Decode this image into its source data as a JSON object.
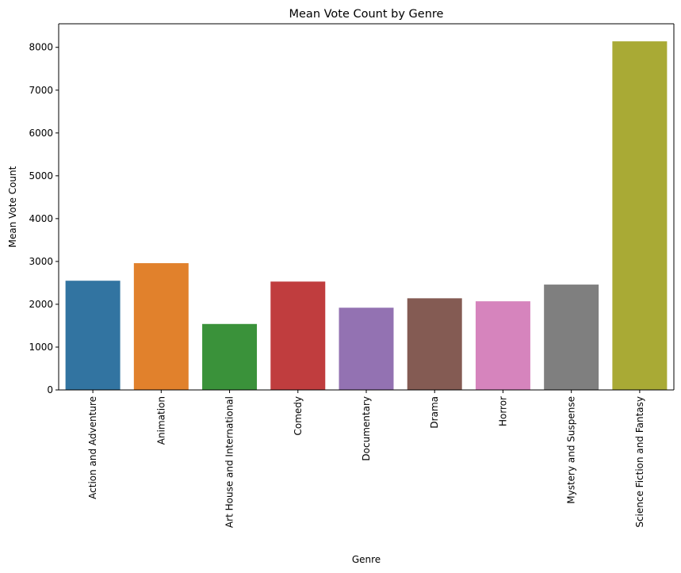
{
  "chart_data": {
    "type": "bar",
    "title": "Mean Vote Count by Genre",
    "xlabel": "Genre",
    "ylabel": "Mean Vote Count",
    "categories": [
      "Action and Adventure",
      "Animation",
      "Art House and International",
      "Comedy",
      "Documentary",
      "Drama",
      "Horror",
      "Mystery and Suspense",
      "Science Fiction and Fantasy"
    ],
    "values": [
      2550,
      2960,
      1540,
      2530,
      1920,
      2140,
      2070,
      2460,
      8140
    ],
    "colors": [
      "#3274a1",
      "#e1812c",
      "#3a923a",
      "#c03d3e",
      "#9372b2",
      "#845b53",
      "#d684bd",
      "#7f7f7f",
      "#a9aa35"
    ],
    "ylim": [
      0,
      8550
    ],
    "yticks": [
      0,
      1000,
      2000,
      3000,
      4000,
      5000,
      6000,
      7000,
      8000
    ],
    "grid": false,
    "legend": "none"
  }
}
